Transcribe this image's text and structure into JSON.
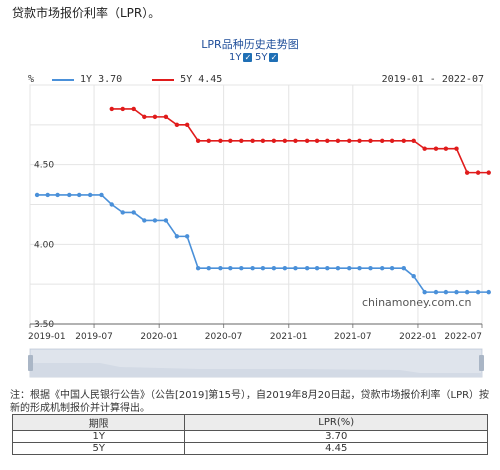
{
  "page_title": "贷款市场报价利率（LPR）。",
  "chart_title": "LPR品种历史走势图",
  "toggles": [
    {
      "label": "1Y",
      "checked": true
    },
    {
      "label": "5Y",
      "checked": true
    }
  ],
  "legend": {
    "items": [
      {
        "name": "1Y",
        "value": "3.70",
        "color": "#4a90d9"
      },
      {
        "name": "5Y",
        "value": "4.45",
        "color": "#e01b1b"
      }
    ],
    "date_range": "2019-01 - 2022-07"
  },
  "watermark": "chinamoney.com.cn",
  "note": "注：根据《中国人民银行公告》（公告[2019]第15号），自2019年8月20日起，贷款市场报价利率（LPR）按新的形成机制报价并计算得出。",
  "table": {
    "headers": [
      "期限",
      "LPR(%)"
    ],
    "rows": [
      [
        "1Y",
        "3.70"
      ],
      [
        "5Y",
        "4.45"
      ]
    ]
  },
  "chart_data": {
    "type": "line",
    "y_unit_label": "%",
    "ylim": [
      3.5,
      5.0
    ],
    "y_ticks": [
      "3.50",
      "4.00",
      "4.50"
    ],
    "x_ticks": [
      "2019-01",
      "2019-07",
      "2020-01",
      "2020-07",
      "2021-01",
      "2021-07",
      "2022-01",
      "2022-07"
    ],
    "x_range": [
      "2019-01",
      "2022-07"
    ],
    "grid": true,
    "series": [
      {
        "name": "1Y",
        "color": "#4a90d9",
        "values": [
          [
            "2019-01-21",
            4.31
          ],
          [
            "2019-02-20",
            4.31
          ],
          [
            "2019-03-20",
            4.31
          ],
          [
            "2019-04-22",
            4.31
          ],
          [
            "2019-05-20",
            4.31
          ],
          [
            "2019-06-20",
            4.31
          ],
          [
            "2019-07-22",
            4.31
          ],
          [
            "2019-08-20",
            4.25
          ],
          [
            "2019-09-20",
            4.2
          ],
          [
            "2019-10-21",
            4.2
          ],
          [
            "2019-11-20",
            4.15
          ],
          [
            "2019-12-20",
            4.15
          ],
          [
            "2020-01-20",
            4.15
          ],
          [
            "2020-02-20",
            4.05
          ],
          [
            "2020-03-20",
            4.05
          ],
          [
            "2020-04-20",
            3.85
          ],
          [
            "2020-05-20",
            3.85
          ],
          [
            "2020-06-22",
            3.85
          ],
          [
            "2020-07-20",
            3.85
          ],
          [
            "2020-08-20",
            3.85
          ],
          [
            "2020-09-21",
            3.85
          ],
          [
            "2020-10-20",
            3.85
          ],
          [
            "2020-11-20",
            3.85
          ],
          [
            "2020-12-21",
            3.85
          ],
          [
            "2021-01-20",
            3.85
          ],
          [
            "2021-02-22",
            3.85
          ],
          [
            "2021-03-22",
            3.85
          ],
          [
            "2021-04-20",
            3.85
          ],
          [
            "2021-05-20",
            3.85
          ],
          [
            "2021-06-21",
            3.85
          ],
          [
            "2021-07-20",
            3.85
          ],
          [
            "2021-08-20",
            3.85
          ],
          [
            "2021-09-22",
            3.85
          ],
          [
            "2021-10-20",
            3.85
          ],
          [
            "2021-11-22",
            3.85
          ],
          [
            "2021-12-20",
            3.8
          ],
          [
            "2022-01-20",
            3.7
          ],
          [
            "2022-02-21",
            3.7
          ],
          [
            "2022-03-21",
            3.7
          ],
          [
            "2022-04-20",
            3.7
          ],
          [
            "2022-05-20",
            3.7
          ],
          [
            "2022-06-20",
            3.7
          ],
          [
            "2022-07-20",
            3.7
          ]
        ]
      },
      {
        "name": "5Y",
        "color": "#e01b1b",
        "values": [
          [
            "2019-08-20",
            4.85
          ],
          [
            "2019-09-20",
            4.85
          ],
          [
            "2019-10-21",
            4.85
          ],
          [
            "2019-11-20",
            4.8
          ],
          [
            "2019-12-20",
            4.8
          ],
          [
            "2020-01-20",
            4.8
          ],
          [
            "2020-02-20",
            4.75
          ],
          [
            "2020-03-20",
            4.75
          ],
          [
            "2020-04-20",
            4.65
          ],
          [
            "2020-05-20",
            4.65
          ],
          [
            "2020-06-22",
            4.65
          ],
          [
            "2020-07-20",
            4.65
          ],
          [
            "2020-08-20",
            4.65
          ],
          [
            "2020-09-21",
            4.65
          ],
          [
            "2020-10-20",
            4.65
          ],
          [
            "2020-11-20",
            4.65
          ],
          [
            "2020-12-21",
            4.65
          ],
          [
            "2021-01-20",
            4.65
          ],
          [
            "2021-02-22",
            4.65
          ],
          [
            "2021-03-22",
            4.65
          ],
          [
            "2021-04-20",
            4.65
          ],
          [
            "2021-05-20",
            4.65
          ],
          [
            "2021-06-21",
            4.65
          ],
          [
            "2021-07-20",
            4.65
          ],
          [
            "2021-08-20",
            4.65
          ],
          [
            "2021-09-22",
            4.65
          ],
          [
            "2021-10-20",
            4.65
          ],
          [
            "2021-11-22",
            4.65
          ],
          [
            "2021-12-20",
            4.65
          ],
          [
            "2022-01-20",
            4.6
          ],
          [
            "2022-02-21",
            4.6
          ],
          [
            "2022-03-21",
            4.6
          ],
          [
            "2022-04-20",
            4.6
          ],
          [
            "2022-05-20",
            4.45
          ],
          [
            "2022-06-20",
            4.45
          ],
          [
            "2022-07-20",
            4.45
          ]
        ]
      }
    ]
  }
}
